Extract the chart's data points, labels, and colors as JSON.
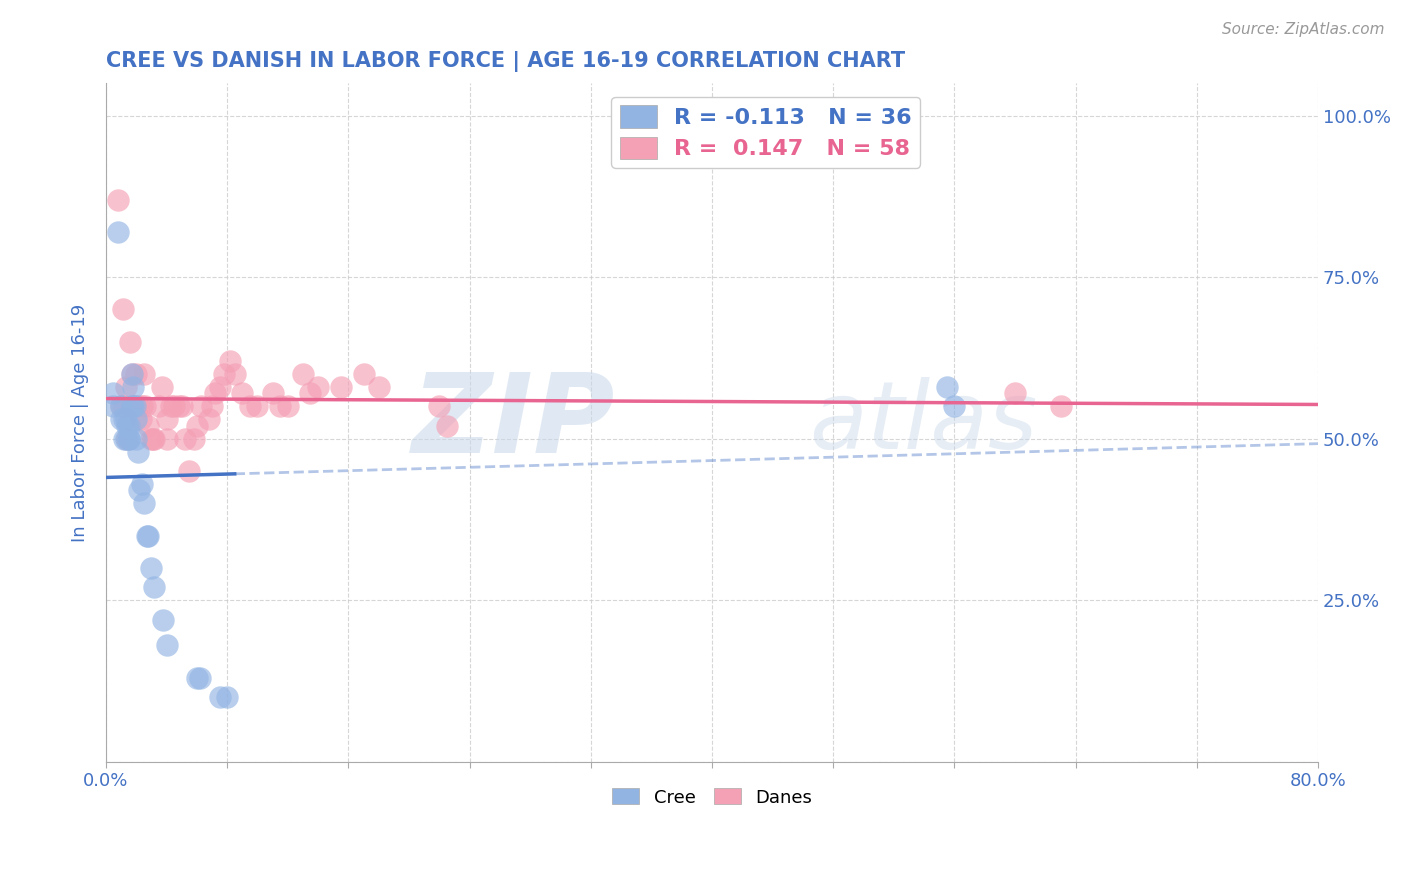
{
  "title": "CREE VS DANISH IN LABOR FORCE | AGE 16-19 CORRELATION CHART",
  "source": "Source: ZipAtlas.com",
  "ylabel": "In Labor Force | Age 16-19",
  "xlim": [
    0.0,
    0.8
  ],
  "ylim": [
    0.0,
    1.05
  ],
  "x_ticks": [
    0.0,
    0.08,
    0.16,
    0.24,
    0.32,
    0.4,
    0.48,
    0.56,
    0.64,
    0.72,
    0.8
  ],
  "y_ticks": [
    0.0,
    0.25,
    0.5,
    0.75,
    1.0
  ],
  "y_tick_labels": [
    "",
    "25.0%",
    "50.0%",
    "75.0%",
    "100.0%"
  ],
  "cree_R": -0.113,
  "cree_N": 36,
  "danes_R": 0.147,
  "danes_N": 58,
  "cree_color": "#92b4e3",
  "danes_color": "#f4a0b5",
  "cree_line_color": "#4472c4",
  "danes_line_color": "#e86491",
  "watermark_color": "#dce6f1",
  "background_color": "#ffffff",
  "grid_color": "#cccccc",
  "title_color": "#4472c4",
  "axis_label_color": "#4472c4",
  "tick_color": "#4472c4",
  "cree_x": [
    0.005,
    0.005,
    0.008,
    0.01,
    0.01,
    0.012,
    0.012,
    0.013,
    0.013,
    0.014,
    0.015,
    0.015,
    0.015,
    0.017,
    0.017,
    0.018,
    0.018,
    0.019,
    0.02,
    0.02,
    0.021,
    0.022,
    0.024,
    0.025,
    0.027,
    0.028,
    0.03,
    0.032,
    0.038,
    0.04,
    0.06,
    0.062,
    0.075,
    0.08,
    0.555,
    0.56
  ],
  "cree_y": [
    0.55,
    0.57,
    0.82,
    0.53,
    0.55,
    0.5,
    0.53,
    0.5,
    0.53,
    0.52,
    0.5,
    0.5,
    0.52,
    0.55,
    0.6,
    0.55,
    0.58,
    0.55,
    0.5,
    0.53,
    0.48,
    0.42,
    0.43,
    0.4,
    0.35,
    0.35,
    0.3,
    0.27,
    0.22,
    0.18,
    0.13,
    0.13,
    0.1,
    0.1,
    0.58,
    0.55
  ],
  "danes_x": [
    0.008,
    0.01,
    0.011,
    0.012,
    0.013,
    0.014,
    0.015,
    0.016,
    0.017,
    0.018,
    0.018,
    0.02,
    0.02,
    0.022,
    0.023,
    0.024,
    0.025,
    0.026,
    0.028,
    0.03,
    0.031,
    0.032,
    0.035,
    0.037,
    0.04,
    0.04,
    0.043,
    0.045,
    0.048,
    0.05,
    0.052,
    0.055,
    0.058,
    0.06,
    0.063,
    0.068,
    0.07,
    0.072,
    0.075,
    0.078,
    0.082,
    0.085,
    0.09,
    0.095,
    0.1,
    0.11,
    0.115,
    0.12,
    0.13,
    0.135,
    0.14,
    0.155,
    0.17,
    0.18,
    0.22,
    0.225,
    0.6,
    0.63
  ],
  "danes_y": [
    0.87,
    0.55,
    0.7,
    0.55,
    0.58,
    0.5,
    0.53,
    0.65,
    0.6,
    0.55,
    0.55,
    0.6,
    0.55,
    0.55,
    0.53,
    0.55,
    0.6,
    0.55,
    0.52,
    0.5,
    0.5,
    0.5,
    0.55,
    0.58,
    0.5,
    0.53,
    0.55,
    0.55,
    0.55,
    0.55,
    0.5,
    0.45,
    0.5,
    0.52,
    0.55,
    0.53,
    0.55,
    0.57,
    0.58,
    0.6,
    0.62,
    0.6,
    0.57,
    0.55,
    0.55,
    0.57,
    0.55,
    0.55,
    0.6,
    0.57,
    0.58,
    0.58,
    0.6,
    0.58,
    0.55,
    0.52,
    0.57,
    0.55
  ]
}
